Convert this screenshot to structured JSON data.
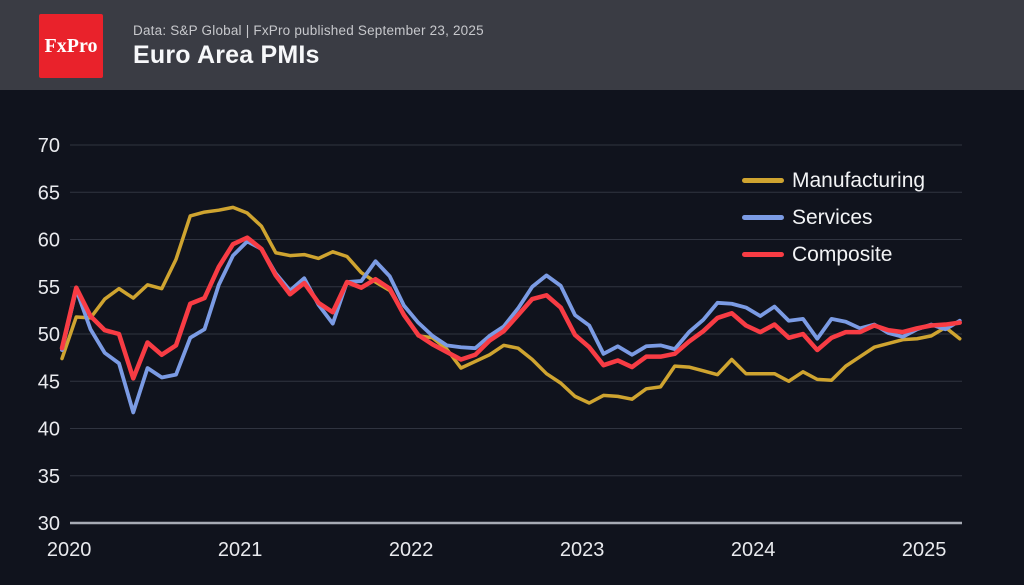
{
  "header": {
    "logo_text": "FxPro",
    "logo_color": "#e9222b",
    "source_line": "Data: S&P Global | FxPro published September 23, 2025",
    "title": "Euro Area PMIs"
  },
  "chart_data": {
    "type": "line",
    "title": "Euro Area PMIs",
    "xlabel": "",
    "ylabel": "",
    "ylim": [
      30,
      70
    ],
    "y_ticks": [
      30,
      35,
      40,
      45,
      50,
      55,
      60,
      65,
      70
    ],
    "x_tick_labels": [
      "2020",
      "2021",
      "2022",
      "2023",
      "2024",
      "2025"
    ],
    "grid": "horizontal",
    "legend_position": "top-right",
    "background": "#10131d",
    "x": [
      "2020-06",
      "2020-07",
      "2020-08",
      "2020-09",
      "2020-10",
      "2020-11",
      "2020-12",
      "2021-01",
      "2021-02",
      "2021-03",
      "2021-04",
      "2021-05",
      "2021-06",
      "2021-07",
      "2021-08",
      "2021-09",
      "2021-10",
      "2021-11",
      "2021-12",
      "2022-01",
      "2022-02",
      "2022-03",
      "2022-04",
      "2022-05",
      "2022-06",
      "2022-07",
      "2022-08",
      "2022-09",
      "2022-10",
      "2022-11",
      "2022-12",
      "2023-01",
      "2023-02",
      "2023-03",
      "2023-04",
      "2023-05",
      "2023-06",
      "2023-07",
      "2023-08",
      "2023-09",
      "2023-10",
      "2023-11",
      "2023-12",
      "2024-01",
      "2024-02",
      "2024-03",
      "2024-04",
      "2024-05",
      "2024-06",
      "2024-07",
      "2024-08",
      "2024-09",
      "2024-10",
      "2024-11",
      "2024-12",
      "2025-01",
      "2025-02",
      "2025-03",
      "2025-04",
      "2025-05",
      "2025-06",
      "2025-07",
      "2025-08",
      "2025-09"
    ],
    "series": [
      {
        "name": "Manufacturing",
        "color": "#cfa430",
        "values": [
          47.4,
          51.8,
          51.7,
          53.7,
          54.8,
          53.8,
          55.2,
          54.8,
          57.9,
          62.5,
          62.9,
          63.1,
          63.4,
          62.8,
          61.4,
          58.6,
          58.3,
          58.4,
          58.0,
          58.7,
          58.2,
          56.5,
          55.5,
          54.6,
          52.1,
          49.8,
          49.6,
          48.4,
          46.4,
          47.1,
          47.8,
          48.8,
          48.5,
          47.3,
          45.8,
          44.8,
          43.4,
          42.7,
          43.5,
          43.4,
          43.1,
          44.2,
          44.4,
          46.6,
          46.5,
          46.1,
          45.7,
          47.3,
          45.8,
          45.8,
          45.8,
          45.0,
          46.0,
          45.2,
          45.1,
          46.6,
          47.6,
          48.6,
          49.0,
          49.4,
          49.5,
          49.8,
          50.7,
          49.5
        ]
      },
      {
        "name": "Services",
        "color": "#7b9be4",
        "values": [
          48.3,
          54.7,
          50.5,
          48.0,
          46.9,
          41.7,
          46.4,
          45.4,
          45.7,
          49.6,
          50.5,
          55.2,
          58.3,
          59.8,
          59.0,
          56.4,
          54.6,
          55.9,
          53.1,
          51.1,
          55.5,
          55.6,
          57.7,
          56.1,
          53.0,
          51.2,
          49.8,
          48.8,
          48.6,
          48.5,
          49.8,
          50.8,
          52.7,
          55.0,
          56.2,
          55.1,
          52.0,
          50.9,
          47.9,
          48.7,
          47.8,
          48.7,
          48.8,
          48.4,
          50.2,
          51.5,
          53.3,
          53.2,
          52.8,
          51.9,
          52.9,
          51.4,
          51.6,
          49.5,
          51.6,
          51.3,
          50.6,
          51.0,
          50.1,
          49.7,
          50.5,
          51.0,
          50.5,
          51.4
        ]
      },
      {
        "name": "Composite",
        "color": "#f83c44",
        "values": [
          48.5,
          54.9,
          51.9,
          50.4,
          50.0,
          45.3,
          49.1,
          47.8,
          48.8,
          53.2,
          53.8,
          57.1,
          59.5,
          60.2,
          59.0,
          56.2,
          54.2,
          55.4,
          53.3,
          52.3,
          55.5,
          54.9,
          55.8,
          54.8,
          52.0,
          49.9,
          48.9,
          48.1,
          47.3,
          47.8,
          49.3,
          50.3,
          52.0,
          53.7,
          54.1,
          52.8,
          49.9,
          48.6,
          46.7,
          47.2,
          46.5,
          47.6,
          47.6,
          47.9,
          49.2,
          50.3,
          51.7,
          52.2,
          50.9,
          50.2,
          51.0,
          49.6,
          50.0,
          48.3,
          49.6,
          50.2,
          50.2,
          50.9,
          50.4,
          50.2,
          50.6,
          50.9,
          51.0,
          51.2
        ]
      }
    ]
  }
}
